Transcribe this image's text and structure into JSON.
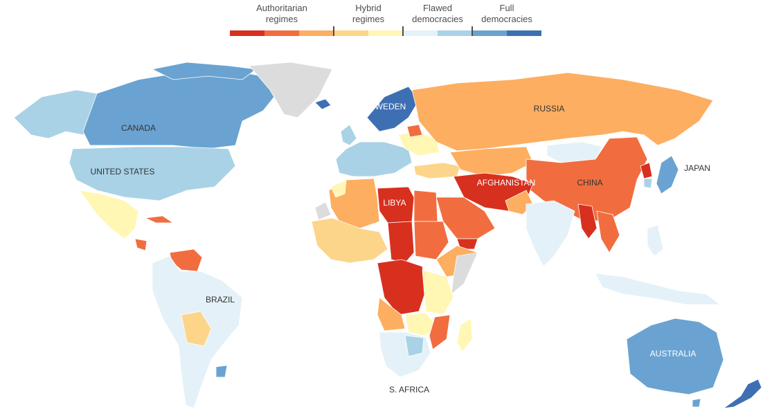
{
  "legend": {
    "categories": [
      {
        "label": "Authoritarian\nregimes",
        "colors": [
          "#d7301f",
          "#f16d3f",
          "#fdae61"
        ]
      },
      {
        "label": "Hybrid\nregimes",
        "colors": [
          "#fdd58a",
          "#fff7b3"
        ]
      },
      {
        "label": "Flawed\ndemocracies",
        "colors": [
          "#e4f1f8",
          "#a9d2e6"
        ]
      },
      {
        "label": "Full\ndemocracies",
        "colors": [
          "#6aa3d1",
          "#3f6fb3"
        ]
      }
    ]
  },
  "labels": {
    "canada": "CANADA",
    "united_states": "UNITED STATES",
    "brazil": "BRAZIL",
    "libya": "LIBYA",
    "afghanistan": "AFGHANISTAN",
    "china": "CHINA",
    "russia": "RUSSIA",
    "sweden": "SWEDEN",
    "japan": "JAPAN",
    "australia": "AUSTRALIA",
    "s_africa": "S. AFRICA"
  },
  "colors": {
    "auth_dark": "#d7301f",
    "auth_mid": "#f16d3f",
    "auth_light": "#fdae61",
    "hybrid_dark": "#fdd58a",
    "hybrid_light": "#fff7b3",
    "flawed_light": "#e4f1f8",
    "flawed_dark": "#a9d2e6",
    "full_light": "#6aa3d1",
    "full_dark": "#3f6fb3",
    "no_data": "#dcdcdc"
  }
}
